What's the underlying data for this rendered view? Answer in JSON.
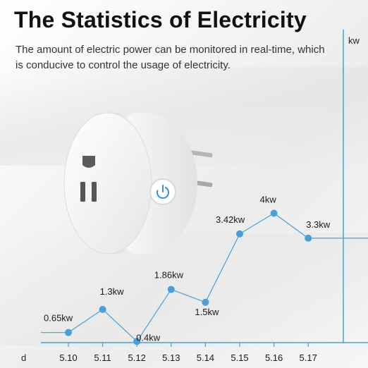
{
  "header": {
    "title": "The Statistics of Electricity",
    "subtitle": "The amount of electric power can be monitored in real-time, which is conducive to control the usage of electricity."
  },
  "colors": {
    "accent": "#4a9fd6",
    "plug_body": "#f2f2f2",
    "power_ring": "#3b8fd0",
    "prongs": "#b0b0b0"
  },
  "icons": [
    "smart-plug-image",
    "power-icon"
  ],
  "chart_data": {
    "type": "line",
    "ylabel": "kw",
    "xlabel": "d",
    "categories": [
      "5.10",
      "5.11",
      "5.12",
      "5.13",
      "5.14",
      "5.15",
      "5.16",
      "5.17"
    ],
    "values": [
      0.65,
      1.3,
      0.4,
      1.86,
      1.5,
      3.42,
      4,
      3.3
    ],
    "point_labels": [
      "0.65kw",
      "1.3kw",
      "0.4kw",
      "1.86kw",
      "1.5kw",
      "3.42kw",
      "4kw",
      "3.3kw"
    ],
    "grid": false,
    "legend": "none"
  }
}
